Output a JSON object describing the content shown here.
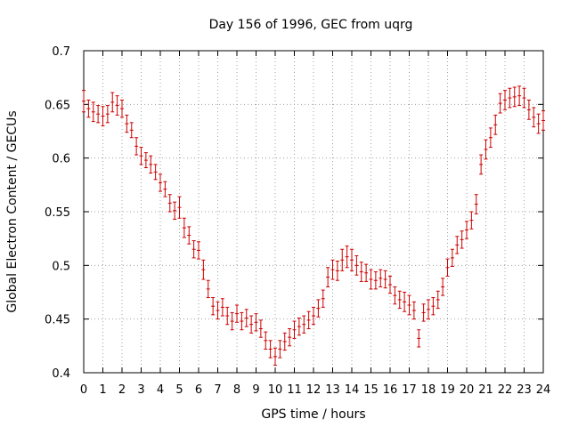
{
  "chart_data": {
    "type": "scatter",
    "title": "Day 156 of 1996, GEC from uqrg",
    "xlabel": "GPS time / hours",
    "ylabel": "Global Electron Content / GECUs",
    "xlim": [
      0,
      24
    ],
    "ylim": [
      0.4,
      0.7
    ],
    "grid": true,
    "x_ticks": [
      0,
      1,
      2,
      3,
      4,
      5,
      6,
      7,
      8,
      9,
      10,
      11,
      12,
      13,
      14,
      15,
      16,
      17,
      18,
      19,
      20,
      21,
      22,
      23,
      24
    ],
    "y_ticks": [
      0.4,
      0.45,
      0.5,
      0.55,
      0.6,
      0.65,
      0.7
    ],
    "y_tick_labels": [
      "0.4",
      "0.45",
      "0.5",
      "0.55",
      "0.6",
      "0.65",
      "0.7"
    ],
    "series_color": "#cc0000",
    "points": [
      {
        "x": 0.0,
        "y": 0.653,
        "err": 0.01
      },
      {
        "x": 0.25,
        "y": 0.646,
        "err": 0.008
      },
      {
        "x": 0.5,
        "y": 0.643,
        "err": 0.009
      },
      {
        "x": 0.75,
        "y": 0.641,
        "err": 0.008
      },
      {
        "x": 1.0,
        "y": 0.639,
        "err": 0.009
      },
      {
        "x": 1.25,
        "y": 0.641,
        "err": 0.008
      },
      {
        "x": 1.5,
        "y": 0.652,
        "err": 0.009
      },
      {
        "x": 1.75,
        "y": 0.649,
        "err": 0.009
      },
      {
        "x": 2.0,
        "y": 0.646,
        "err": 0.008
      },
      {
        "x": 2.25,
        "y": 0.632,
        "err": 0.008
      },
      {
        "x": 2.5,
        "y": 0.626,
        "err": 0.007
      },
      {
        "x": 2.75,
        "y": 0.611,
        "err": 0.008
      },
      {
        "x": 3.0,
        "y": 0.602,
        "err": 0.008
      },
      {
        "x": 3.25,
        "y": 0.598,
        "err": 0.007
      },
      {
        "x": 3.5,
        "y": 0.594,
        "err": 0.008
      },
      {
        "x": 3.75,
        "y": 0.587,
        "err": 0.007
      },
      {
        "x": 4.0,
        "y": 0.577,
        "err": 0.008
      },
      {
        "x": 4.25,
        "y": 0.571,
        "err": 0.007
      },
      {
        "x": 4.5,
        "y": 0.558,
        "err": 0.008
      },
      {
        "x": 4.75,
        "y": 0.551,
        "err": 0.008
      },
      {
        "x": 5.0,
        "y": 0.554,
        "err": 0.01
      },
      {
        "x": 5.25,
        "y": 0.535,
        "err": 0.009
      },
      {
        "x": 5.5,
        "y": 0.528,
        "err": 0.008
      },
      {
        "x": 5.75,
        "y": 0.515,
        "err": 0.008
      },
      {
        "x": 6.0,
        "y": 0.514,
        "err": 0.008
      },
      {
        "x": 6.25,
        "y": 0.496,
        "err": 0.009
      },
      {
        "x": 6.5,
        "y": 0.478,
        "err": 0.008
      },
      {
        "x": 6.75,
        "y": 0.462,
        "err": 0.008
      },
      {
        "x": 7.0,
        "y": 0.458,
        "err": 0.008
      },
      {
        "x": 7.25,
        "y": 0.461,
        "err": 0.008
      },
      {
        "x": 7.5,
        "y": 0.453,
        "err": 0.008
      },
      {
        "x": 7.75,
        "y": 0.448,
        "err": 0.008
      },
      {
        "x": 8.0,
        "y": 0.455,
        "err": 0.008
      },
      {
        "x": 8.25,
        "y": 0.448,
        "err": 0.008
      },
      {
        "x": 8.5,
        "y": 0.451,
        "err": 0.008
      },
      {
        "x": 8.75,
        "y": 0.445,
        "err": 0.008
      },
      {
        "x": 9.0,
        "y": 0.447,
        "err": 0.008
      },
      {
        "x": 9.25,
        "y": 0.441,
        "err": 0.008
      },
      {
        "x": 9.5,
        "y": 0.43,
        "err": 0.008
      },
      {
        "x": 9.75,
        "y": 0.422,
        "err": 0.008
      },
      {
        "x": 10.0,
        "y": 0.415,
        "err": 0.008
      },
      {
        "x": 10.25,
        "y": 0.422,
        "err": 0.008
      },
      {
        "x": 10.5,
        "y": 0.429,
        "err": 0.008
      },
      {
        "x": 10.75,
        "y": 0.433,
        "err": 0.008
      },
      {
        "x": 11.0,
        "y": 0.44,
        "err": 0.008
      },
      {
        "x": 11.25,
        "y": 0.443,
        "err": 0.008
      },
      {
        "x": 11.5,
        "y": 0.445,
        "err": 0.008
      },
      {
        "x": 11.75,
        "y": 0.449,
        "err": 0.008
      },
      {
        "x": 12.0,
        "y": 0.453,
        "err": 0.008
      },
      {
        "x": 12.25,
        "y": 0.46,
        "err": 0.008
      },
      {
        "x": 12.5,
        "y": 0.469,
        "err": 0.008
      },
      {
        "x": 12.75,
        "y": 0.489,
        "err": 0.009
      },
      {
        "x": 13.0,
        "y": 0.496,
        "err": 0.009
      },
      {
        "x": 13.25,
        "y": 0.495,
        "err": 0.009
      },
      {
        "x": 13.5,
        "y": 0.505,
        "err": 0.01
      },
      {
        "x": 13.75,
        "y": 0.508,
        "err": 0.01
      },
      {
        "x": 14.0,
        "y": 0.505,
        "err": 0.01
      },
      {
        "x": 14.25,
        "y": 0.5,
        "err": 0.009
      },
      {
        "x": 14.5,
        "y": 0.494,
        "err": 0.009
      },
      {
        "x": 14.75,
        "y": 0.493,
        "err": 0.008
      },
      {
        "x": 15.0,
        "y": 0.487,
        "err": 0.009
      },
      {
        "x": 15.25,
        "y": 0.486,
        "err": 0.008
      },
      {
        "x": 15.5,
        "y": 0.488,
        "err": 0.008
      },
      {
        "x": 15.75,
        "y": 0.487,
        "err": 0.008
      },
      {
        "x": 16.0,
        "y": 0.482,
        "err": 0.008
      },
      {
        "x": 16.25,
        "y": 0.472,
        "err": 0.008
      },
      {
        "x": 16.5,
        "y": 0.468,
        "err": 0.008
      },
      {
        "x": 16.75,
        "y": 0.466,
        "err": 0.009
      },
      {
        "x": 17.0,
        "y": 0.463,
        "err": 0.009
      },
      {
        "x": 17.25,
        "y": 0.458,
        "err": 0.008
      },
      {
        "x": 17.5,
        "y": 0.432,
        "err": 0.008
      },
      {
        "x": 17.75,
        "y": 0.456,
        "err": 0.008
      },
      {
        "x": 18.0,
        "y": 0.459,
        "err": 0.009
      },
      {
        "x": 18.25,
        "y": 0.462,
        "err": 0.008
      },
      {
        "x": 18.5,
        "y": 0.468,
        "err": 0.008
      },
      {
        "x": 18.75,
        "y": 0.48,
        "err": 0.008
      },
      {
        "x": 19.0,
        "y": 0.498,
        "err": 0.008
      },
      {
        "x": 19.25,
        "y": 0.507,
        "err": 0.008
      },
      {
        "x": 19.5,
        "y": 0.519,
        "err": 0.008
      },
      {
        "x": 19.75,
        "y": 0.524,
        "err": 0.008
      },
      {
        "x": 20.0,
        "y": 0.533,
        "err": 0.008
      },
      {
        "x": 20.25,
        "y": 0.542,
        "err": 0.008
      },
      {
        "x": 20.5,
        "y": 0.557,
        "err": 0.009
      },
      {
        "x": 20.75,
        "y": 0.594,
        "err": 0.009
      },
      {
        "x": 21.0,
        "y": 0.608,
        "err": 0.009
      },
      {
        "x": 21.25,
        "y": 0.619,
        "err": 0.009
      },
      {
        "x": 21.5,
        "y": 0.631,
        "err": 0.009
      },
      {
        "x": 21.75,
        "y": 0.651,
        "err": 0.009
      },
      {
        "x": 22.0,
        "y": 0.654,
        "err": 0.009
      },
      {
        "x": 22.25,
        "y": 0.656,
        "err": 0.009
      },
      {
        "x": 22.5,
        "y": 0.657,
        "err": 0.009
      },
      {
        "x": 22.75,
        "y": 0.658,
        "err": 0.009
      },
      {
        "x": 23.0,
        "y": 0.656,
        "err": 0.009
      },
      {
        "x": 23.25,
        "y": 0.645,
        "err": 0.009
      },
      {
        "x": 23.5,
        "y": 0.638,
        "err": 0.009
      },
      {
        "x": 23.75,
        "y": 0.632,
        "err": 0.009
      },
      {
        "x": 24.0,
        "y": 0.635,
        "err": 0.009
      }
    ]
  }
}
